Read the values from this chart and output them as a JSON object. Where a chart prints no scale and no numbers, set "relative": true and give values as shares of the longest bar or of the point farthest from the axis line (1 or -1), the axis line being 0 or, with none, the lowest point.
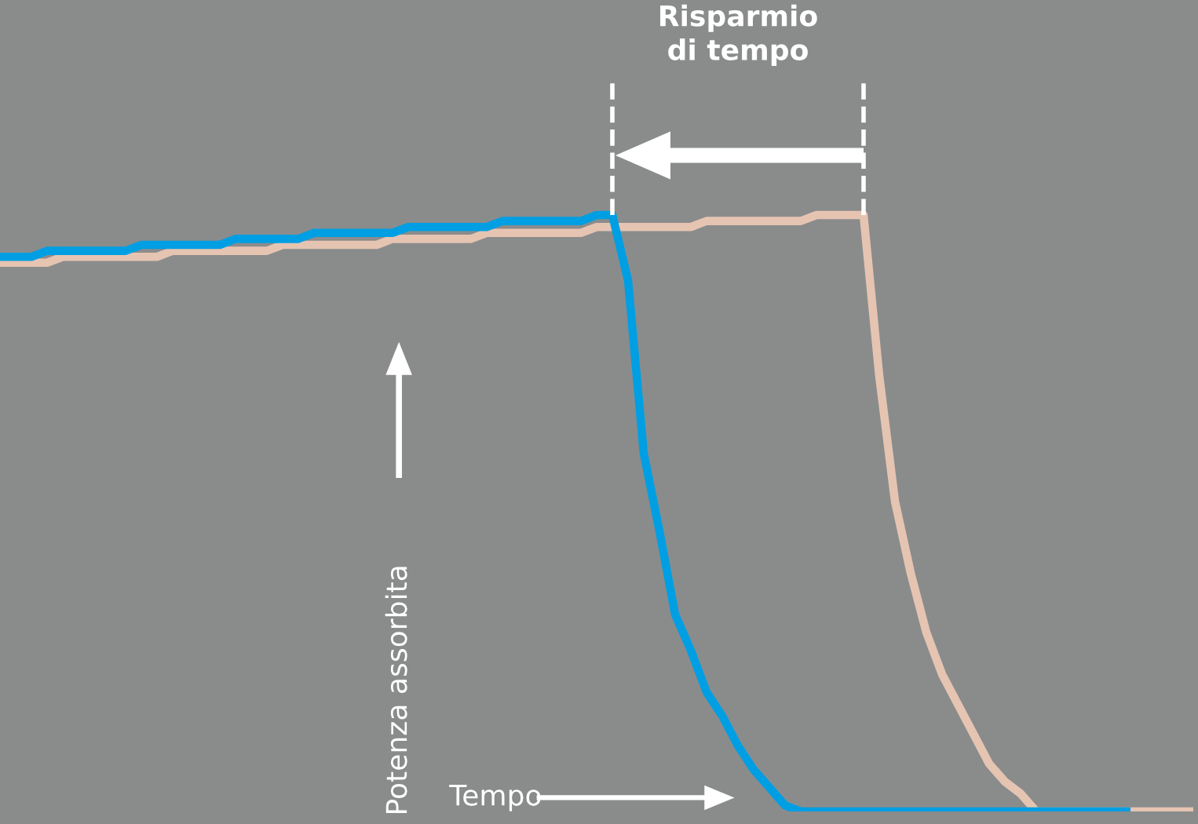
{
  "chart_data": {
    "type": "line",
    "relative": true,
    "xlabel": "Tempo",
    "ylabel": "Potenza assorbita",
    "legend": false,
    "categories": [
      null,
      null,
      null,
      null,
      null,
      null,
      null,
      null,
      null,
      null,
      null,
      null,
      null,
      null,
      null,
      null,
      null,
      null,
      null,
      null,
      null,
      null,
      null,
      null,
      null,
      null,
      null,
      null,
      null,
      null,
      null,
      null,
      null,
      null,
      null,
      null,
      null,
      null,
      null,
      null,
      null,
      null,
      null,
      null,
      null,
      null,
      null,
      null,
      null,
      null,
      null,
      null,
      null,
      null,
      null,
      null,
      null,
      null,
      null,
      null,
      null,
      null,
      null,
      null,
      null,
      null,
      null,
      null,
      null,
      null,
      null,
      null,
      null,
      null,
      null,
      null,
      null
    ],
    "series": [
      {
        "color": "#e6c4b2",
        "values": [
          0.92,
          0.92,
          0.92,
          0.92,
          0.93,
          0.93,
          0.93,
          0.93,
          0.93,
          0.93,
          0.93,
          0.94,
          0.94,
          0.94,
          0.94,
          0.94,
          0.94,
          0.94,
          0.95,
          0.95,
          0.95,
          0.95,
          0.95,
          0.95,
          0.95,
          0.96,
          0.96,
          0.96,
          0.96,
          0.96,
          0.96,
          0.97,
          0.97,
          0.97,
          0.97,
          0.97,
          0.97,
          0.97,
          0.98,
          0.98,
          0.98,
          0.98,
          0.98,
          0.98,
          0.98,
          0.99,
          0.99,
          0.99,
          0.99,
          0.99,
          0.99,
          0.99,
          1.0,
          1.0,
          1.0,
          1.0,
          0.73,
          0.52,
          0.4,
          0.3,
          0.23,
          0.18,
          0.13,
          0.08,
          0.05,
          0.03,
          0,
          0,
          0,
          0,
          0,
          0,
          0,
          0,
          0,
          0,
          0
        ]
      },
      {
        "color": "#009fe3",
        "values": [
          0.93,
          0.93,
          0.93,
          0.94,
          0.94,
          0.94,
          0.94,
          0.94,
          0.94,
          0.95,
          0.95,
          0.95,
          0.95,
          0.95,
          0.95,
          0.96,
          0.96,
          0.96,
          0.96,
          0.96,
          0.97,
          0.97,
          0.97,
          0.97,
          0.97,
          0.97,
          0.98,
          0.98,
          0.98,
          0.98,
          0.98,
          0.98,
          0.99,
          0.99,
          0.99,
          0.99,
          0.99,
          0.99,
          1.0,
          1.0,
          0.89,
          0.6,
          0.47,
          0.33,
          0.27,
          0.2,
          0.16,
          0.11,
          0.07,
          0.04,
          0.01,
          0,
          0,
          0,
          0,
          0,
          0,
          0,
          0,
          0,
          0,
          0,
          0,
          0,
          0,
          0,
          0,
          0,
          0,
          0,
          0,
          0,
          0,
          null,
          null,
          null,
          null
        ]
      }
    ],
    "annotations": [
      "Risparmio\ndi tempo"
    ]
  }
}
